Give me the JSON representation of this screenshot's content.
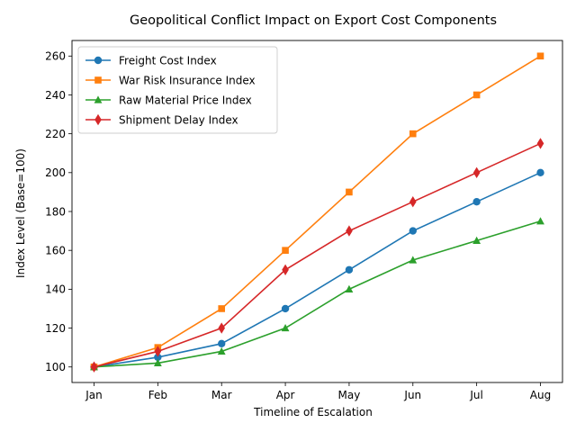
{
  "chart_data": {
    "type": "line",
    "title": "Geopolitical Conflict Impact on Export Cost Components",
    "xlabel": "Timeline of Escalation",
    "ylabel": "Index Level (Base=100)",
    "categories": [
      "Jan",
      "Feb",
      "Mar",
      "Apr",
      "May",
      "Jun",
      "Jul",
      "Aug"
    ],
    "ylim": [
      92,
      268
    ],
    "yticks": [
      100,
      120,
      140,
      160,
      180,
      200,
      220,
      240,
      260
    ],
    "grid": false,
    "legend_position": "top-left",
    "series": [
      {
        "name": "Freight Cost Index",
        "color": "#1f77b4",
        "marker": "circle",
        "values": [
          100,
          105,
          112,
          130,
          150,
          170,
          185,
          200
        ]
      },
      {
        "name": "War Risk Insurance Index",
        "color": "#ff7f0e",
        "marker": "square",
        "values": [
          100,
          110,
          130,
          160,
          190,
          220,
          240,
          260
        ]
      },
      {
        "name": "Raw Material Price Index",
        "color": "#2ca02c",
        "marker": "triangle",
        "values": [
          100,
          102,
          108,
          120,
          140,
          155,
          165,
          175
        ]
      },
      {
        "name": "Shipment Delay Index",
        "color": "#d62728",
        "marker": "diamond",
        "values": [
          100,
          108,
          120,
          150,
          170,
          185,
          200,
          215
        ]
      }
    ]
  }
}
